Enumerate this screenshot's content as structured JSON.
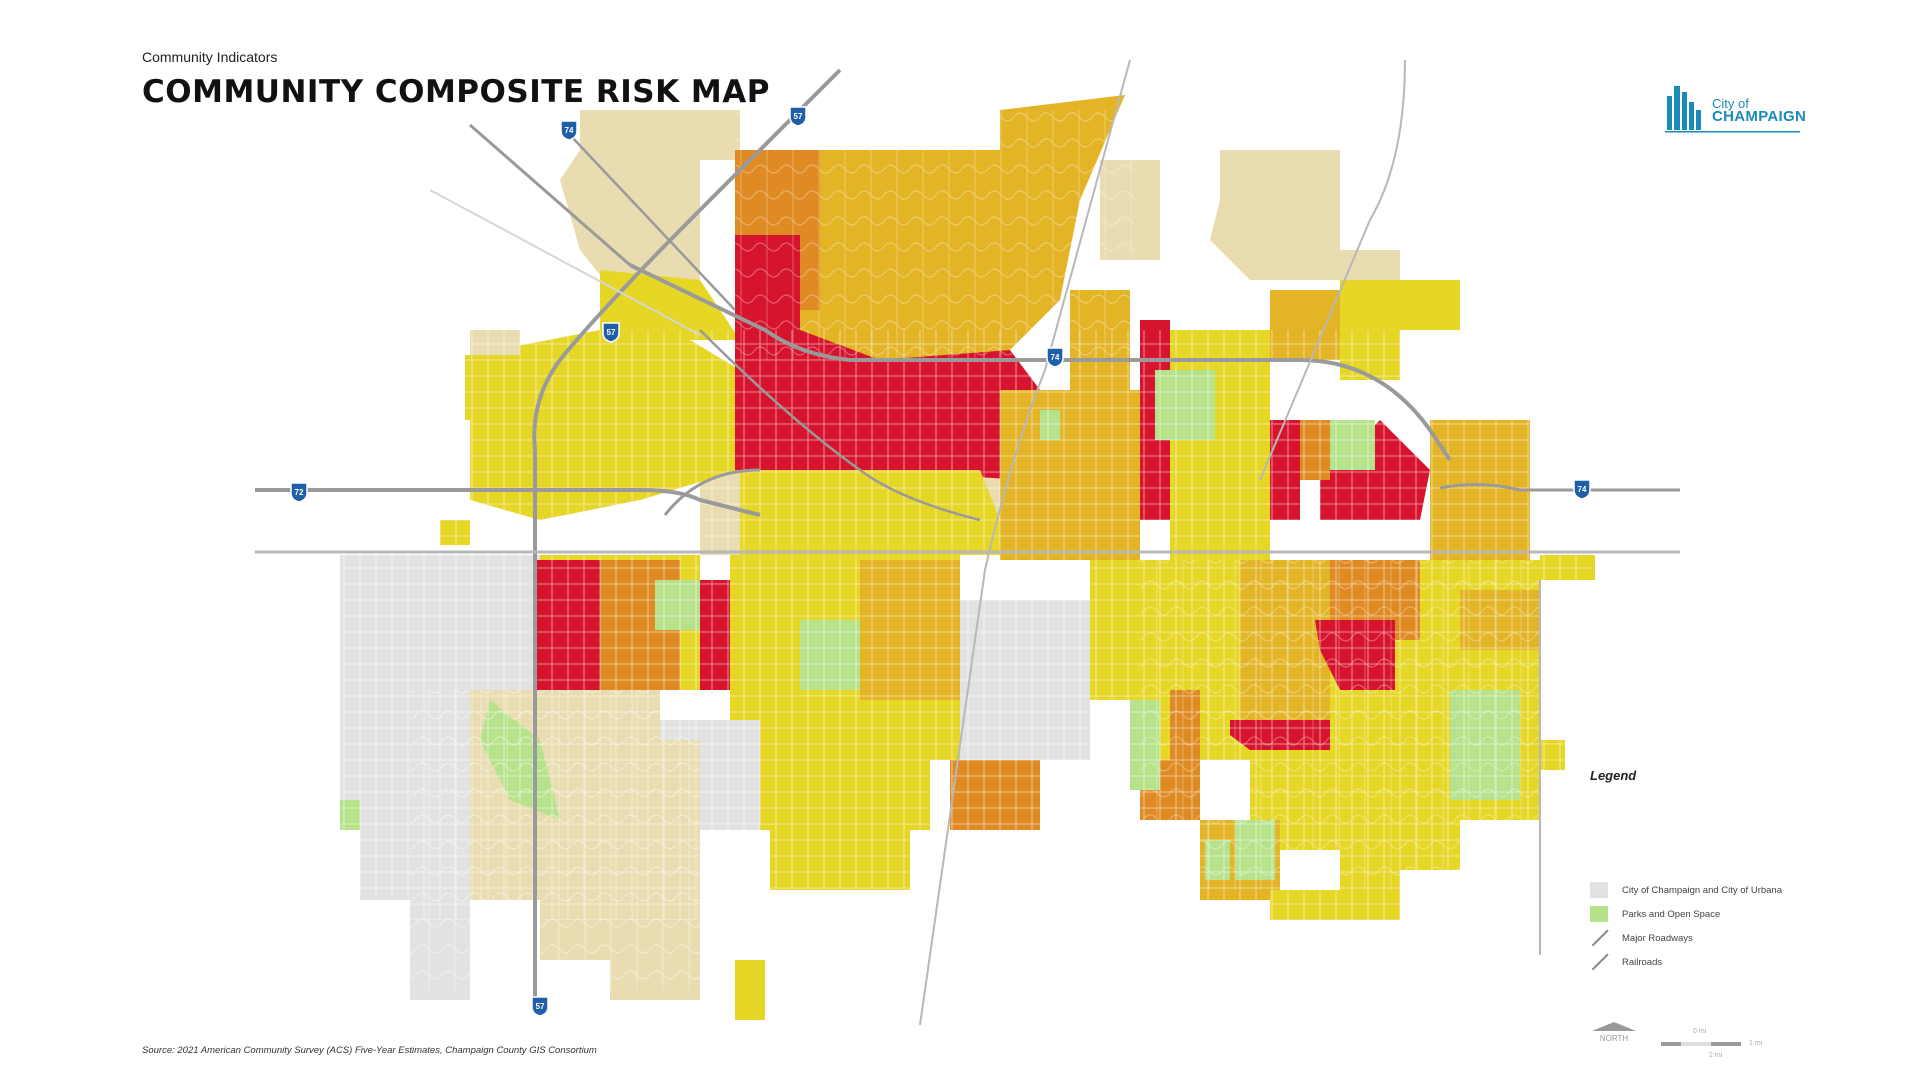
{
  "header": {
    "eyebrow": "Community Indicators",
    "title": "COMMUNITY COMPOSITE RISK MAP"
  },
  "logo": {
    "line1": "City of",
    "line2": "CHAMPAIGN"
  },
  "legend": {
    "title": "Legend",
    "items": [
      {
        "label": "City of Champaign and City of Urbana",
        "color": "#e2e2e2",
        "kind": "fill"
      },
      {
        "label": "Parks and Open Space",
        "color": "#b6e28b",
        "kind": "fill"
      },
      {
        "label": "Major Roadways",
        "color": "#888888",
        "kind": "line"
      },
      {
        "label": "Railroads",
        "color": "#888888",
        "kind": "line"
      }
    ]
  },
  "shields": [
    "74",
    "57",
    "57",
    "72",
    "74",
    "74",
    "57"
  ],
  "north_label": "NORTH",
  "scale": {
    "top": "0 mi",
    "right": "1 mi",
    "bottom": "2 mi"
  },
  "source": "Source: 2021 American Community Survey (ACS) Five-Year Estimates, Champaign County GIS Consortium",
  "colors": {
    "red": "#d7142d",
    "orange": "#df8a22",
    "gold": "#e3b526",
    "yellow": "#e6d626",
    "beige": "#e8dcb0",
    "gray": "#e2e2e2",
    "park": "#b6e28b",
    "road": "#9a9a9a"
  }
}
